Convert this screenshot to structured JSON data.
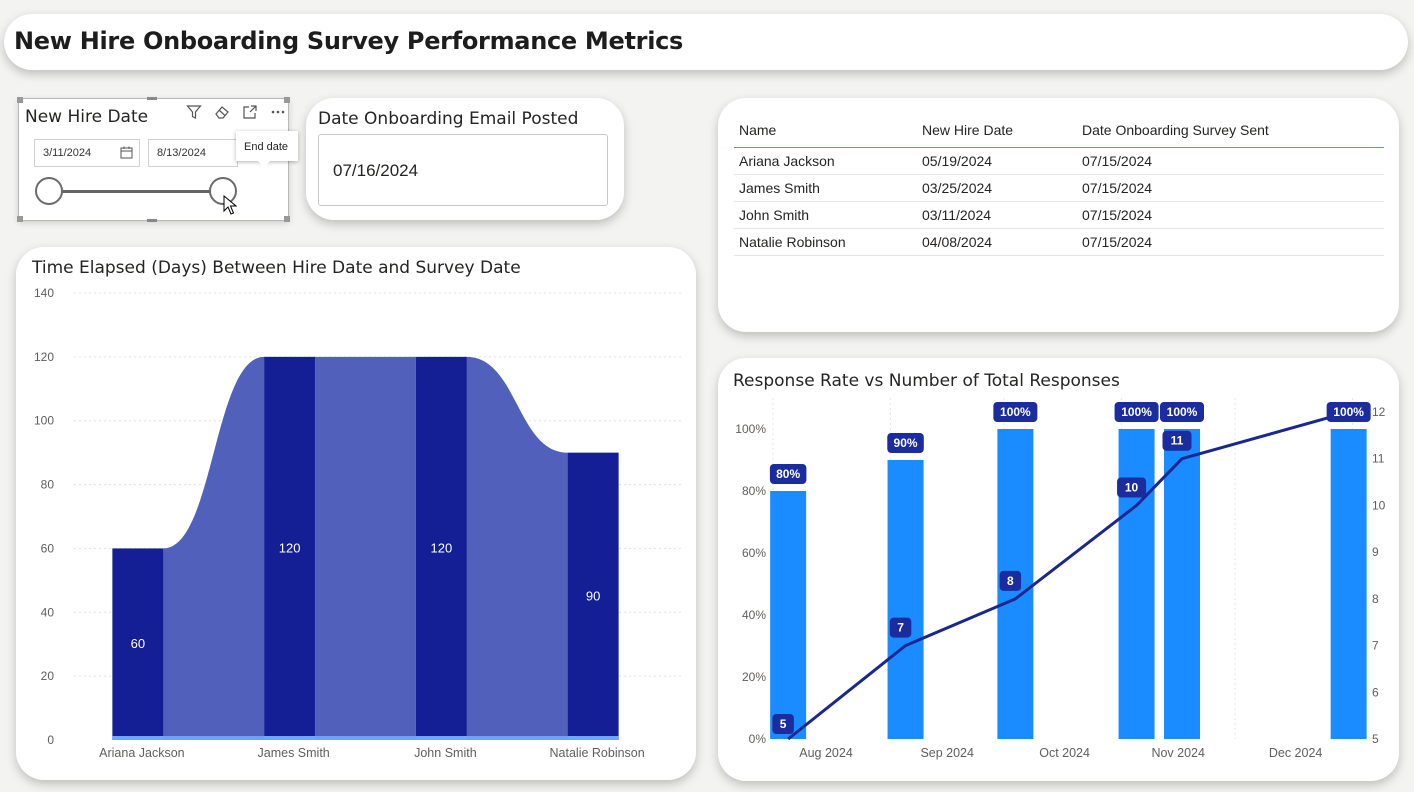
{
  "page": {
    "title": "New Hire Onboarding Survey Performance Metrics"
  },
  "slicer": {
    "title": "New Hire Date",
    "start_date": "3/11/2024",
    "end_date": "8/13/2024",
    "tooltip": "End date",
    "icons": [
      "filter-icon",
      "eraser-icon",
      "focus-mode-icon",
      "more-options-icon"
    ],
    "range": {
      "start_fraction": 0.0,
      "end_fraction": 1.0
    }
  },
  "email_card": {
    "label": "Date Onboarding Email Posted",
    "value": "07/16/2024"
  },
  "table": {
    "columns": [
      "Name",
      "New Hire Date",
      "Date Onboarding Survey Sent"
    ],
    "rows": [
      [
        "Ariana Jackson",
        "05/19/2024",
        "07/15/2024"
      ],
      [
        "James Smith",
        "03/25/2024",
        "07/15/2024"
      ],
      [
        "John Smith",
        "03/11/2024",
        "07/15/2024"
      ],
      [
        "Natalie Robinson",
        "04/08/2024",
        "07/15/2024"
      ]
    ]
  },
  "colors": {
    "bar_dark": "#141f96",
    "ribbon": "#5060bb",
    "bar_light": "#1a8cff",
    "line": "#1a2790",
    "label_bg": "#1a2c9e"
  },
  "chart_data": [
    {
      "type": "bar",
      "title": "Time Elapsed (Days) Between Hire Date and Survey Date",
      "categories": [
        "Ariana Jackson",
        "James Smith",
        "John Smith",
        "Natalie Robinson"
      ],
      "values": [
        60,
        120,
        120,
        90
      ],
      "ylim": [
        0,
        140
      ],
      "yticks": [
        0,
        20,
        40,
        60,
        80,
        100,
        120,
        140
      ],
      "grid": true,
      "style": "ribbon"
    },
    {
      "type": "bar",
      "title": "Response Rate vs Number of Total Responses",
      "x_ticks": [
        "Aug 2024",
        "Sep 2024",
        "Oct 2024",
        "Nov 2024",
        "Dec 2024"
      ],
      "series": [
        {
          "type": "bar",
          "axis": "left",
          "points": [
            {
              "x": "2024-08-05",
              "value": 80,
              "label": "80%"
            },
            {
              "x": "2024-09-05",
              "value": 90,
              "label": "90%"
            },
            {
              "x": "2024-10-04",
              "value": 100,
              "label": "100%"
            },
            {
              "x": "2024-11-05",
              "value": 100,
              "label": "100%"
            },
            {
              "x": "2024-11-17",
              "value": 100,
              "label": "100%"
            },
            {
              "x": "2024-12-31",
              "value": 100,
              "label": "100%"
            }
          ]
        },
        {
          "type": "line",
          "axis": "right",
          "points": [
            {
              "x": "2024-08-05",
              "value": 5,
              "label": "5"
            },
            {
              "x": "2024-09-05",
              "value": 7,
              "label": "7"
            },
            {
              "x": "2024-10-04",
              "value": 8,
              "label": "8"
            },
            {
              "x": "2024-11-05",
              "value": 10,
              "label": "10"
            },
            {
              "x": "2024-11-17",
              "value": 11,
              "label": "11"
            },
            {
              "x": "2024-12-31",
              "value": 12
            }
          ]
        }
      ],
      "left_axis": {
        "ylim": [
          0,
          110
        ],
        "ticks": [
          0,
          20,
          40,
          60,
          80,
          100
        ],
        "tick_labels": [
          "0%",
          "20%",
          "40%",
          "60%",
          "80%",
          "100%"
        ]
      },
      "right_axis": {
        "ylim": [
          5,
          12.3
        ],
        "ticks": [
          5,
          6,
          7,
          8,
          9,
          10,
          11,
          12
        ],
        "tick_labels": [
          "5",
          "6",
          "7",
          "8",
          "9",
          "10",
          "11",
          "12"
        ]
      },
      "grid": true
    }
  ]
}
